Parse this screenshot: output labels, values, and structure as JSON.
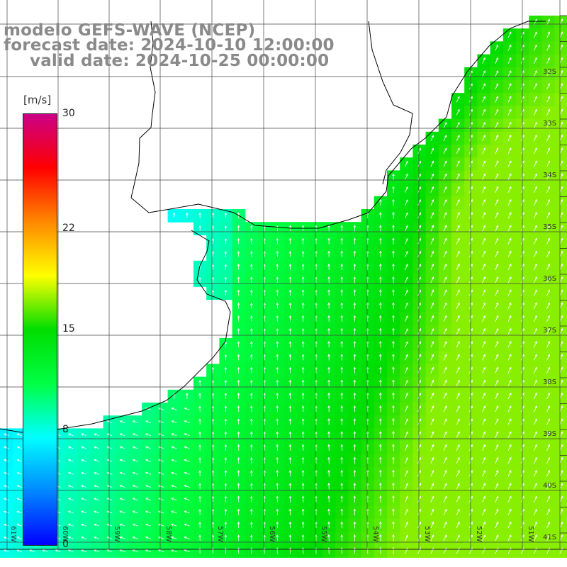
{
  "header": {
    "model": "modelo GEFS-WAVE (NCEP)",
    "forecast": "forecast date: 2024-10-10 12:00:00",
    "valid": "valid date: 2024-10-25 00:00:00"
  },
  "colorbar": {
    "units": "[m/s]",
    "min": 0,
    "max": 30,
    "ticks": [
      "30",
      "22",
      "15",
      "8",
      "0"
    ],
    "tick_values": [
      30,
      22,
      15,
      8,
      0
    ],
    "colors": [
      "#0000ff",
      "#0088ff",
      "#00ffff",
      "#00ff44",
      "#00dd00",
      "#ffff00",
      "#ff8800",
      "#ff0000",
      "#cc0088"
    ]
  },
  "map": {
    "lat_labels": [
      "32S",
      "33S",
      "34S",
      "35S",
      "36S",
      "37S",
      "38S",
      "39S",
      "40S",
      "41S"
    ],
    "lon_labels": [
      "61W",
      "60W",
      "59W",
      "58W",
      "57W",
      "56W",
      "55W",
      "54W",
      "53W",
      "52W",
      "51W"
    ],
    "colors": {
      "land": "#ffffff",
      "coast": "#000000",
      "grid": "#444444",
      "arrow": "#ffffff"
    }
  }
}
